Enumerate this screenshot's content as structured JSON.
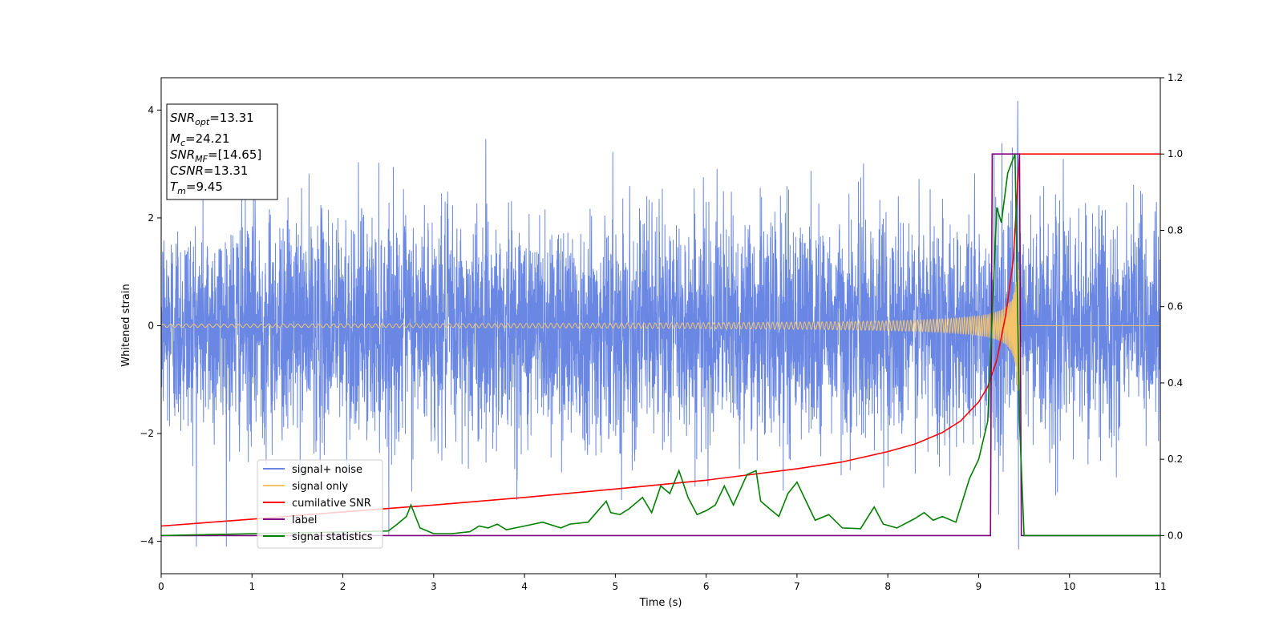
{
  "chart_data": {
    "type": "line",
    "xlabel": "Time (s)",
    "ylabel": "Whitened strain",
    "xlim": [
      0,
      11
    ],
    "ylim": [
      -4.6,
      4.6
    ],
    "ylim_right": [
      -0.1,
      1.2
    ],
    "xticks": [
      "0",
      "1",
      "2",
      "3",
      "4",
      "5",
      "6",
      "7",
      "8",
      "9",
      "10",
      "11"
    ],
    "yticks": [
      "−4",
      "−2",
      "0",
      "2",
      "4"
    ],
    "yticks_right": [
      "0.0",
      "0.2",
      "0.4",
      "0.6",
      "0.8",
      "1.0",
      "1.2"
    ],
    "grid": false,
    "legend_position": "lower-left",
    "annotation": {
      "snr_opt": {
        "sym": "SNR",
        "sub": "opt",
        "val": "=13.31"
      },
      "mc": {
        "sym": "M",
        "sub": "c",
        "val": "=24.21"
      },
      "snr_mf": {
        "sym": "SNR",
        "sub": "MF",
        "val": "=[14.65]"
      },
      "csnr": {
        "sym": "CSNR",
        "val": "=13.31"
      },
      "tm": {
        "sym": "T",
        "sub": "m",
        "val": "=9.45"
      }
    },
    "series": [
      {
        "name": "signal+ noise",
        "color": "#6a88e3",
        "axis": "left",
        "amplitude_envelope": 1.5,
        "peak_value": 4.17,
        "min_value": -4.15
      },
      {
        "name": "signal only",
        "color": "#f5c46a",
        "axis": "left",
        "amplitude_start": 0.03,
        "amplitude_end": 1.6,
        "merger_time": 9.45
      },
      {
        "name": "cumilative SNR",
        "color": "#ff0000",
        "axis": "right",
        "x": [
          0,
          1,
          2,
          3,
          4,
          5,
          6,
          7,
          7.5,
          8,
          8.3,
          8.6,
          8.8,
          9.0,
          9.1,
          9.2,
          9.3,
          9.38,
          9.45,
          11
        ],
        "y": [
          0.025,
          0.043,
          0.062,
          0.08,
          0.1,
          0.122,
          0.145,
          0.175,
          0.193,
          0.22,
          0.24,
          0.27,
          0.3,
          0.35,
          0.39,
          0.46,
          0.58,
          0.72,
          1.0,
          1.0
        ]
      },
      {
        "name": "label",
        "color": "#800080",
        "axis": "right",
        "x": [
          0,
          9.13,
          9.15,
          9.45,
          9.47,
          11
        ],
        "y": [
          0,
          0,
          1,
          1,
          0,
          0
        ]
      },
      {
        "name": "signal statistics",
        "color": "#008000",
        "axis": "right",
        "x": [
          0,
          2.5,
          2.6,
          2.7,
          2.75,
          2.85,
          3.0,
          3.2,
          3.4,
          3.5,
          3.6,
          3.7,
          3.8,
          4.0,
          4.2,
          4.4,
          4.5,
          4.7,
          4.9,
          4.95,
          5.05,
          5.15,
          5.3,
          5.4,
          5.5,
          5.6,
          5.7,
          5.8,
          5.9,
          6.0,
          6.1,
          6.2,
          6.3,
          6.45,
          6.55,
          6.6,
          6.7,
          6.8,
          6.9,
          7.0,
          7.1,
          7.2,
          7.35,
          7.5,
          7.7,
          7.85,
          7.95,
          8.1,
          8.3,
          8.4,
          8.5,
          8.6,
          8.75,
          8.9,
          9.0,
          9.1,
          9.2,
          9.25,
          9.32,
          9.4,
          9.45,
          9.5,
          11
        ],
        "y": [
          0.0,
          0.012,
          0.03,
          0.05,
          0.08,
          0.02,
          0.005,
          0.005,
          0.01,
          0.025,
          0.02,
          0.03,
          0.015,
          0.025,
          0.035,
          0.02,
          0.03,
          0.035,
          0.09,
          0.06,
          0.055,
          0.07,
          0.1,
          0.06,
          0.13,
          0.11,
          0.17,
          0.1,
          0.055,
          0.065,
          0.08,
          0.13,
          0.08,
          0.16,
          0.17,
          0.09,
          0.07,
          0.05,
          0.11,
          0.14,
          0.09,
          0.04,
          0.055,
          0.02,
          0.018,
          0.075,
          0.03,
          0.02,
          0.045,
          0.06,
          0.04,
          0.05,
          0.035,
          0.15,
          0.2,
          0.3,
          0.86,
          0.82,
          0.95,
          1.0,
          0.3,
          0.0,
          0.0
        ]
      }
    ]
  }
}
